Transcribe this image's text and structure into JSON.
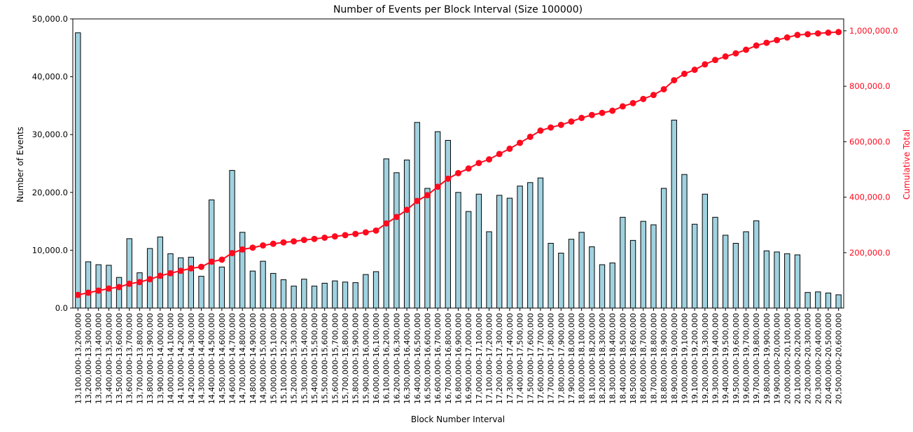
{
  "chart_data": {
    "type": "bar+line",
    "title": "Number of Events per Block Interval (Size 100000)",
    "xlabel": "Block Number Interval",
    "ylabel": "Number of Events",
    "y2label": "Cumulative Total",
    "ylim": [
      0,
      50000
    ],
    "y2lim": [
      210,
      1042790
    ],
    "yticks": [
      "0.0",
      "10,000.0",
      "20,000.0",
      "30,000.0",
      "40,000.0",
      "50,000.0"
    ],
    "y2ticks": [
      "200,000.0",
      "400,000.0",
      "600,000.0",
      "800,000.0",
      "1,000,000.0"
    ],
    "grid": false,
    "colors": {
      "bar": "#a0d2e0",
      "bar_edge": "#000000",
      "line": "#ff0a1e",
      "y2_axis": "#ff0a1e"
    },
    "categories": [
      "13,100,000-13,200,000",
      "13,200,000-13,300,000",
      "13,300,000-13,400,000",
      "13,400,000-13,500,000",
      "13,500,000-13,600,000",
      "13,600,000-13,700,000",
      "13,700,000-13,800,000",
      "13,800,000-13,900,000",
      "13,900,000-14,000,000",
      "14,000,000-14,100,000",
      "14,100,000-14,200,000",
      "14,200,000-14,300,000",
      "14,300,000-14,400,000",
      "14,400,000-14,500,000",
      "14,500,000-14,600,000",
      "14,600,000-14,700,000",
      "14,700,000-14,800,000",
      "14,800,000-14,900,000",
      "14,900,000-15,000,000",
      "15,000,000-15,100,000",
      "15,100,000-15,200,000",
      "15,200,000-15,300,000",
      "15,300,000-15,400,000",
      "15,400,000-15,500,000",
      "15,500,000-15,600,000",
      "15,600,000-15,700,000",
      "15,700,000-15,800,000",
      "15,800,000-15,900,000",
      "15,900,000-16,000,000",
      "16,000,000-16,100,000",
      "16,100,000-16,200,000",
      "16,200,000-16,300,000",
      "16,300,000-16,400,000",
      "16,400,000-16,500,000",
      "16,500,000-16,600,000",
      "16,600,000-16,700,000",
      "16,700,000-16,800,000",
      "16,800,000-16,900,000",
      "16,900,000-17,000,000",
      "17,000,000-17,100,000",
      "17,100,000-17,200,000",
      "17,200,000-17,300,000",
      "17,300,000-17,400,000",
      "17,400,000-17,500,000",
      "17,500,000-17,600,000",
      "17,600,000-17,700,000",
      "17,700,000-17,800,000",
      "17,800,000-17,900,000",
      "17,900,000-18,000,000",
      "18,000,000-18,100,000",
      "18,100,000-18,200,000",
      "18,200,000-18,300,000",
      "18,300,000-18,400,000",
      "18,400,000-18,500,000",
      "18,500,000-18,600,000",
      "18,600,000-18,700,000",
      "18,700,000-18,800,000",
      "18,800,000-18,900,000",
      "18,900,000-19,000,000",
      "19,000,000-19,100,000",
      "19,100,000-19,200,000",
      "19,200,000-19,300,000",
      "19,300,000-19,400,000",
      "19,400,000-19,500,000",
      "19,500,000-19,600,000",
      "19,600,000-19,700,000",
      "19,700,000-19,800,000",
      "19,800,000-19,900,000",
      "19,900,000-20,000,000",
      "20,000,000-20,100,000",
      "20,100,000-20,200,000",
      "20,200,000-20,300,000",
      "20,300,000-20,400,000",
      "20,400,000-20,500,000",
      "20,500,000-20,600,000"
    ],
    "series": [
      {
        "type": "bar",
        "axis": "left",
        "values": [
          47600,
          8000,
          7500,
          7400,
          5300,
          12000,
          6100,
          10300,
          12300,
          9400,
          8700,
          8800,
          5500,
          18700,
          7100,
          23800,
          13100,
          6400,
          8100,
          6000,
          4900,
          3800,
          5000,
          3800,
          4300,
          4700,
          4500,
          4400,
          5800,
          6300,
          25800,
          23400,
          25600,
          32100,
          20700,
          30500,
          29000,
          20000,
          16700,
          19700,
          13200,
          19500,
          19000,
          21100,
          21700,
          22500,
          11200,
          9500,
          11900,
          13100,
          10600,
          7500,
          7800,
          15700,
          11700,
          15000,
          14400,
          20700,
          32500,
          23100,
          14500,
          19700,
          15700,
          12600,
          11200,
          13200,
          15100,
          9900,
          9700,
          9400,
          9200,
          2700,
          2800,
          2600,
          2300
        ]
      },
      {
        "type": "line",
        "axis": "right",
        "values": [
          47600,
          55600,
          63100,
          70500,
          75800,
          87800,
          93900,
          104200,
          116500,
          125900,
          134600,
          143400,
          148900,
          167600,
          174700,
          198500,
          211600,
          218000,
          226100,
          232100,
          237000,
          240800,
          245800,
          249600,
          253900,
          258600,
          263100,
          267500,
          273300,
          279600,
          305400,
          328800,
          354400,
          386500,
          407200,
          437700,
          466700,
          486700,
          503400,
          523100,
          536300,
          555800,
          574800,
          595900,
          617600,
          640100,
          651300,
          660800,
          672700,
          685800,
          696400,
          703900,
          711700,
          727400,
          739100,
          754100,
          768500,
          789200,
          821700,
          844800,
          859300,
          879000,
          894700,
          907300,
          918500,
          931700,
          946800,
          956700,
          966400,
          975800,
          985000,
          987700,
          990500,
          993100,
          995400
        ]
      }
    ]
  }
}
